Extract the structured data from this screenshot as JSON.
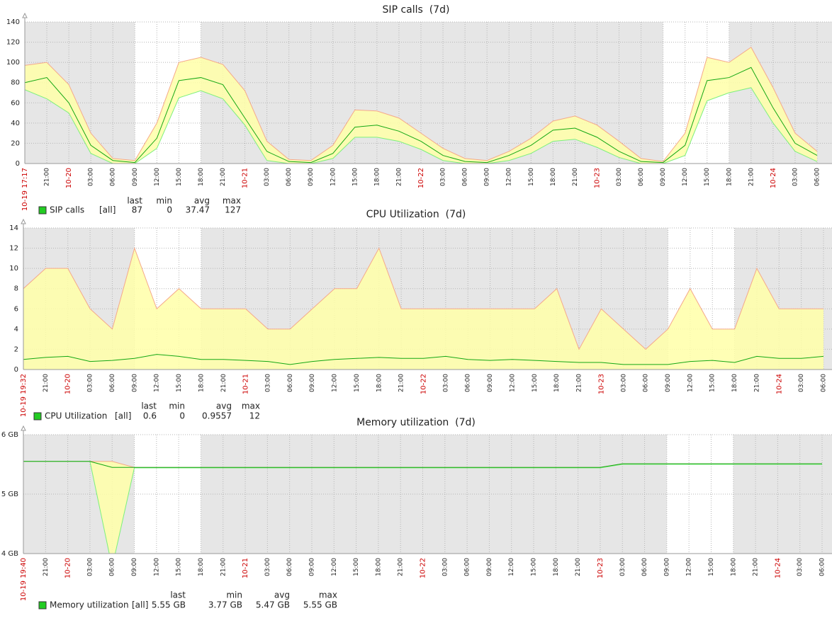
{
  "chart_data": [
    {
      "type": "area",
      "title": "SIP calls  (7d)",
      "categories": [
        "10-19 17:17",
        "21:00",
        "10-20",
        "03:00",
        "06:00",
        "09:00",
        "12:00",
        "15:00",
        "18:00",
        "21:00",
        "10-21",
        "03:00",
        "06:00",
        "09:00",
        "12:00",
        "15:00",
        "18:00",
        "21:00",
        "10-22",
        "03:00",
        "06:00",
        "09:00",
        "12:00",
        "15:00",
        "18:00",
        "21:00",
        "10-23",
        "03:00",
        "06:00",
        "09:00",
        "12:00",
        "15:00",
        "18:00",
        "21:00",
        "10-24",
        "03:00",
        "06:00"
      ],
      "series": [
        {
          "color": "#7cf07c",
          "values": [
            73,
            64,
            50,
            10,
            0,
            0,
            15,
            65,
            72,
            64,
            38,
            3,
            0,
            0,
            5,
            26,
            26,
            22,
            14,
            3,
            0,
            0,
            3,
            10,
            22,
            24,
            16,
            6,
            0,
            0,
            8,
            62,
            70,
            75,
            40,
            12,
            2
          ]
        },
        {
          "color": "#14a814",
          "values": [
            80,
            85,
            60,
            18,
            3,
            1,
            25,
            82,
            85,
            78,
            45,
            12,
            2,
            1,
            10,
            36,
            38,
            32,
            22,
            8,
            2,
            1,
            8,
            18,
            33,
            35,
            26,
            12,
            2,
            1,
            18,
            82,
            85,
            95,
            55,
            20,
            8
          ]
        },
        {
          "color": "#f5a98a",
          "values": [
            97,
            100,
            78,
            30,
            5,
            3,
            40,
            100,
            105,
            98,
            72,
            22,
            4,
            3,
            18,
            53,
            52,
            45,
            30,
            15,
            5,
            3,
            12,
            25,
            42,
            47,
            38,
            22,
            5,
            2,
            30,
            105,
            100,
            115,
            75,
            30,
            12
          ]
        }
      ],
      "ylim": [
        0,
        140
      ],
      "yticks": [
        0,
        20,
        40,
        60,
        80,
        100,
        120,
        140
      ],
      "grid": true,
      "legend": {
        "headers": [
          "last",
          "min",
          "avg",
          "max"
        ],
        "name": "SIP calls",
        "scope": "[all]",
        "color": "#22cc22",
        "stats": [
          87,
          0,
          37.47,
          127
        ]
      }
    },
    {
      "type": "area",
      "title": "CPU Utilization  (7d)",
      "categories": [
        "10-19 19:32",
        "21:00",
        "10-20",
        "03:00",
        "06:00",
        "09:00",
        "12:00",
        "15:00",
        "18:00",
        "21:00",
        "10-21",
        "03:00",
        "06:00",
        "09:00",
        "12:00",
        "15:00",
        "18:00",
        "21:00",
        "10-22",
        "03:00",
        "06:00",
        "09:00",
        "12:00",
        "15:00",
        "18:00",
        "21:00",
        "10-23",
        "03:00",
        "06:00",
        "09:00",
        "12:00",
        "15:00",
        "18:00",
        "21:00",
        "10-24",
        "03:00",
        "06:00"
      ],
      "series": [
        {
          "color": "#7cf07c",
          "values": [
            0,
            0,
            0,
            0,
            0,
            0,
            0,
            0,
            0,
            0,
            0,
            0,
            0,
            0,
            0,
            0,
            0,
            0,
            0,
            0,
            0,
            0,
            0,
            0,
            0,
            0,
            0,
            0,
            0,
            0,
            0,
            0,
            0,
            0,
            0,
            0,
            0
          ]
        },
        {
          "color": "#14a814",
          "values": [
            1,
            1.2,
            1.3,
            0.8,
            0.9,
            1.1,
            1.5,
            1.3,
            1,
            1,
            0.9,
            0.8,
            0.5,
            0.8,
            1,
            1.1,
            1.2,
            1.1,
            1.1,
            1.3,
            1,
            0.9,
            1,
            0.9,
            0.8,
            0.7,
            0.7,
            0.5,
            0.5,
            0.5,
            0.8,
            0.9,
            0.7,
            1.3,
            1.1,
            1.1,
            1.3
          ]
        },
        {
          "color": "#f5a98a",
          "values": [
            8,
            10,
            10,
            6,
            4,
            12,
            6,
            8,
            6,
            6,
            6,
            4,
            4,
            6,
            8,
            8,
            12,
            6,
            6,
            6,
            6,
            6,
            6,
            6,
            8,
            2,
            6,
            4,
            2,
            4,
            8,
            4,
            4,
            10,
            6,
            6,
            6
          ]
        }
      ],
      "ylim": [
        0,
        14
      ],
      "yticks": [
        0,
        2,
        4,
        6,
        8,
        10,
        12,
        14
      ],
      "grid": true,
      "legend": {
        "headers": [
          "last",
          "min",
          "avg",
          "max"
        ],
        "name": "CPU Utilization",
        "scope": "[all]",
        "color": "#22cc22",
        "stats": [
          0.6,
          0,
          0.9557,
          12
        ]
      }
    },
    {
      "type": "area",
      "title": "Memory utilization  (7d)",
      "categories": [
        "10-19 19:40",
        "21:00",
        "10-20",
        "03:00",
        "06:00",
        "09:00",
        "12:00",
        "15:00",
        "18:00",
        "21:00",
        "10-21",
        "03:00",
        "06:00",
        "09:00",
        "12:00",
        "15:00",
        "18:00",
        "21:00",
        "10-22",
        "03:00",
        "06:00",
        "09:00",
        "12:00",
        "15:00",
        "18:00",
        "21:00",
        "10-23",
        "03:00",
        "06:00",
        "09:00",
        "12:00",
        "15:00",
        "18:00",
        "21:00",
        "10-24",
        "03:00",
        "06:00"
      ],
      "series": [
        {
          "color": "#7cf07c",
          "values": [
            5.55,
            5.55,
            5.55,
            5.55,
            3.77,
            5.44,
            5.44,
            5.44,
            5.44,
            5.44,
            5.44,
            5.44,
            5.44,
            5.44,
            5.44,
            5.44,
            5.44,
            5.44,
            5.44,
            5.44,
            5.44,
            5.44,
            5.44,
            5.44,
            5.44,
            5.44,
            5.44,
            5.5,
            5.5,
            5.5,
            5.5,
            5.5,
            5.5,
            5.5,
            5.5,
            5.5,
            5.5
          ]
        },
        {
          "color": "#14a814",
          "values": [
            5.55,
            5.55,
            5.55,
            5.55,
            5.45,
            5.45,
            5.45,
            5.45,
            5.45,
            5.45,
            5.45,
            5.45,
            5.45,
            5.45,
            5.45,
            5.45,
            5.45,
            5.45,
            5.45,
            5.45,
            5.45,
            5.45,
            5.45,
            5.45,
            5.45,
            5.45,
            5.45,
            5.51,
            5.51,
            5.51,
            5.51,
            5.51,
            5.51,
            5.51,
            5.51,
            5.51,
            5.51
          ]
        },
        {
          "color": "#f5a98a",
          "values": [
            5.55,
            5.55,
            5.55,
            5.55,
            5.55,
            5.45,
            5.45,
            5.45,
            5.45,
            5.45,
            5.45,
            5.45,
            5.45,
            5.45,
            5.45,
            5.45,
            5.45,
            5.45,
            5.45,
            5.45,
            5.45,
            5.45,
            5.45,
            5.45,
            5.45,
            5.45,
            5.45,
            5.51,
            5.51,
            5.51,
            5.51,
            5.51,
            5.51,
            5.51,
            5.51,
            5.51,
            5.51
          ]
        }
      ],
      "ylim": [
        4,
        6
      ],
      "yticks": [
        {
          "value": 4,
          "label": "4 GB"
        },
        {
          "value": 5,
          "label": "5 GB"
        },
        {
          "value": 6,
          "label": "6 GB"
        }
      ],
      "grid": true,
      "legend": {
        "headers": [
          "last",
          "min",
          "avg",
          "max"
        ],
        "name": "Memory utilization",
        "scope": "[all]",
        "color": "#22cc22",
        "stats": [
          {
            "value": 5.55,
            "label": "5.55 GB"
          },
          {
            "value": 3.77,
            "label": "3.77 GB"
          },
          {
            "value": 5.47,
            "label": "5.47 GB"
          },
          {
            "value": 5.55,
            "label": "5.55 GB"
          }
        ]
      }
    }
  ]
}
